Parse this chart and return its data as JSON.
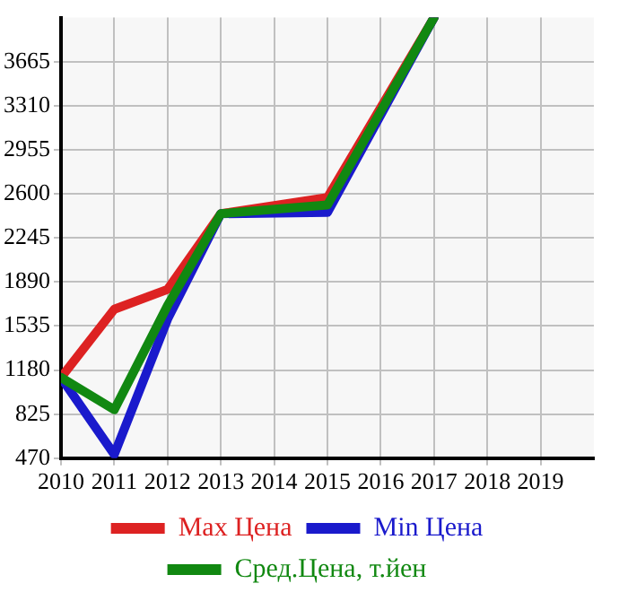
{
  "chart_data": {
    "type": "line",
    "x": [
      2010,
      2011,
      2012,
      2013,
      2015,
      2017
    ],
    "series": [
      {
        "name": "Max Цена",
        "color": "#dd2222",
        "values": [
          1120,
          1670,
          1830,
          2440,
          2570,
          4020
        ]
      },
      {
        "name": "Min Цена",
        "color": "#1a1acc",
        "values": [
          1120,
          500,
          1590,
          2440,
          2450,
          4020
        ]
      },
      {
        "name": "Сред.Цена, т.йен",
        "color": "#118811",
        "values": [
          1120,
          860,
          1700,
          2440,
          2510,
          4020
        ]
      }
    ],
    "xlim": [
      2010,
      2020
    ],
    "xticks": [
      2010,
      2011,
      2012,
      2013,
      2014,
      2015,
      2016,
      2017,
      2018,
      2019
    ],
    "ylim": [
      470,
      4020
    ],
    "yticks": [
      470,
      825,
      1180,
      1535,
      1890,
      2245,
      2600,
      2955,
      3310,
      3665
    ],
    "grid": true,
    "legend": "bottom",
    "marker": "none",
    "line_style": "solid"
  }
}
